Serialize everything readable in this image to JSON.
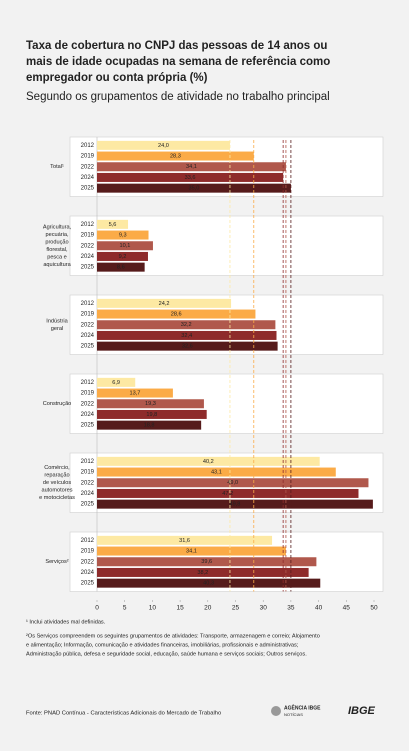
{
  "chart_data": {
    "type": "bar",
    "orientation": "horizontal",
    "title_lines": [
      "Taxa de cobertura no CNPJ das pessoas de 14 anos ou",
      "mais de idade ocupadas na semana de referência como",
      "empregador ou conta própria (%)"
    ],
    "subtitle": "Segundo os grupamentos de atividade no trabalho principal",
    "categories": [
      [
        "Total¹"
      ],
      [
        "Agricultura,",
        "pecuária,",
        "produção",
        "florestal,",
        "pesca e",
        "aquicultura"
      ],
      [
        "Indústria",
        "geral"
      ],
      [
        "Construção"
      ],
      [
        "Comércio,",
        "reparação",
        "de veículos",
        "automotores",
        "e motocicletas"
      ],
      [
        "Serviços²"
      ]
    ],
    "series": [
      {
        "name": "2012",
        "color": "#fde9a3",
        "values": [
          24.0,
          5.6,
          24.2,
          6.9,
          40.2,
          31.6
        ],
        "value_labels": [
          "24,0",
          "5,6",
          "24,2",
          "6,9",
          "40,2",
          "31,6"
        ]
      },
      {
        "name": "2019",
        "color": "#fbab47",
        "values": [
          28.3,
          9.3,
          28.6,
          13.7,
          43.1,
          34.1
        ],
        "value_labels": [
          "28,3",
          "9,3",
          "28,6",
          "13,7",
          "43,1",
          "34,1"
        ]
      },
      {
        "name": "2022",
        "color": "#b0584c",
        "values": [
          34.1,
          10.1,
          32.2,
          19.3,
          49.0,
          39.6
        ],
        "value_labels": [
          "34,1",
          "10,1",
          "32,2",
          "19,3",
          "49,0",
          "39,6"
        ]
      },
      {
        "name": "2024",
        "color": "#8e2b2b",
        "values": [
          33.6,
          9.2,
          32.4,
          19.8,
          47.2,
          38.2
        ],
        "value_labels": [
          "33,6",
          "9,2",
          "32,4",
          "19,8",
          "47,2",
          "38,2"
        ]
      },
      {
        "name": "2025",
        "color": "#561b1b",
        "values": [
          35.0,
          8.6,
          32.6,
          18.8,
          49.8,
          40.3
        ],
        "value_labels": [
          "35,0",
          "8,6",
          "32,6",
          "18,8",
          "49,8",
          "40,3"
        ]
      }
    ],
    "xlim": [
      0,
      50
    ],
    "xticks": [
      0,
      5,
      10,
      15,
      20,
      25,
      30,
      35,
      40,
      45,
      50
    ],
    "reference_lines_from_category": 0,
    "footnotes": [
      "¹ Inclui atividades mal definidas.",
      "²Os Serviços compreendem os seguintes grupamentos de atividades: Transporte, armazenagem e correio; Alojamento",
      "e alimentação; Informação, comunicação e atividades financeiras, imobiliárias, profissionais e administrativas;",
      "Administração pública, defesa e seguridade social, educação, saúde humana e serviços sociais; Outros serviços."
    ],
    "source": "Fonte: PNAD Contínua - Características Adicionais do Mercado de Trabalho",
    "logo_agency": [
      "AGÊNCIA IBGE",
      "NOTÍCIAS"
    ],
    "logo_ibge": "IBGE"
  }
}
